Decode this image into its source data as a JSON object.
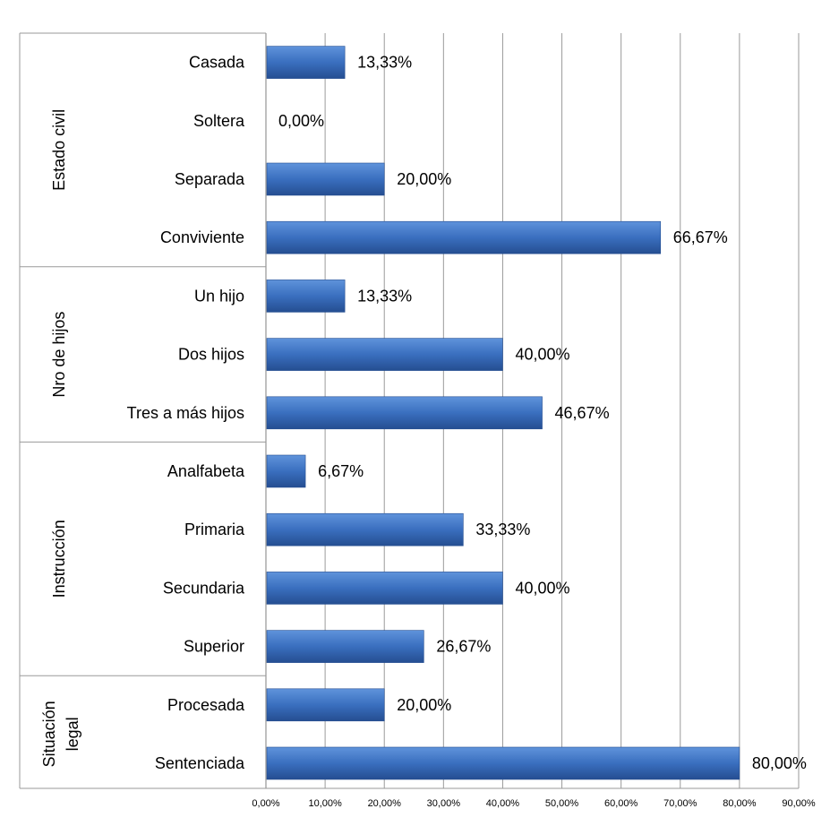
{
  "chart_data": {
    "type": "bar",
    "orientation": "horizontal",
    "groups": [
      {
        "label": "Estado civil",
        "categories": [
          "Casada",
          "Soltera",
          "Separada",
          "Conviviente"
        ],
        "values": [
          13.33,
          0.0,
          20.0,
          66.67
        ],
        "value_labels": [
          "13,33%",
          "0,00%",
          "20,00%",
          "66,67%"
        ]
      },
      {
        "label": "Nro de hijos",
        "categories": [
          "Un hijo",
          "Dos hijos",
          "Tres a más hijos"
        ],
        "values": [
          13.33,
          40.0,
          46.67
        ],
        "value_labels": [
          "13,33%",
          "40,00%",
          "46,67%"
        ]
      },
      {
        "label": "Instrucción",
        "categories": [
          "Analfabeta",
          "Primaria",
          "Secundaria",
          "Superior"
        ],
        "values": [
          6.67,
          33.33,
          40.0,
          26.67
        ],
        "value_labels": [
          "6,67%",
          "33,33%",
          "40,00%",
          "26,67%"
        ]
      },
      {
        "label": "Situación legal",
        "label_lines": [
          "Situación",
          "legal"
        ],
        "categories": [
          "Procesada",
          "Sentenciada"
        ],
        "values": [
          20.0,
          80.0
        ],
        "value_labels": [
          "20,00%",
          "80,00%"
        ]
      }
    ],
    "xlim": [
      0,
      90
    ],
    "xticks": [
      0,
      10,
      20,
      30,
      40,
      50,
      60,
      70,
      80,
      90
    ],
    "xtick_labels": [
      "0,00%",
      "10,00%",
      "20,00%",
      "30,00%",
      "40,00%",
      "50,00%",
      "60,00%",
      "70,00%",
      "80,00%",
      "90,00%"
    ],
    "grid": true,
    "legend": "none",
    "bar_color": "#3A6FBF",
    "bar_color_light": "#5F93DB",
    "bar_color_dark": "#254E91",
    "grid_color": "#9A9A9A",
    "title": "",
    "xlabel": "",
    "ylabel": ""
  }
}
